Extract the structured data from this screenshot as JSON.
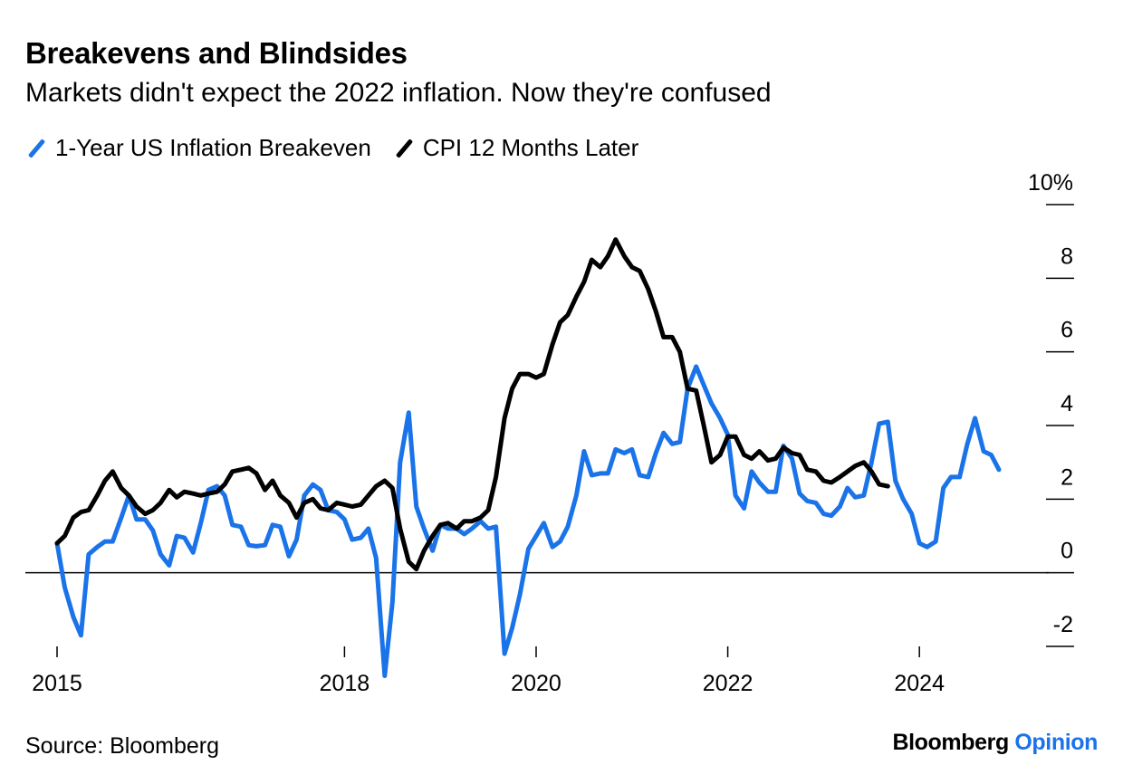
{
  "header": {
    "title": "Breakevens and Blindsides",
    "subtitle": "Markets didn't expect the 2022 inflation. Now they're confused"
  },
  "legend": [
    {
      "label": "1-Year US Inflation Breakeven",
      "color": "#1a73e8"
    },
    {
      "label": "CPI 12 Months Later",
      "color": "#000000"
    }
  ],
  "footer": {
    "source": "Source: Bloomberg",
    "brand_main": "Bloomberg",
    "brand_accent": "Opinion"
  },
  "chart_data": {
    "type": "line",
    "x_unit": "year",
    "xlim": [
      2014.95,
      2025.5
    ],
    "ylim": [
      -2,
      10
    ],
    "x_ticks": [
      {
        "value": 2015,
        "label": "2015"
      },
      {
        "value": 2018,
        "label": "2018"
      },
      {
        "value": 2020,
        "label": "2020"
      },
      {
        "value": 2022,
        "label": "2022"
      },
      {
        "value": 2024,
        "label": "2024"
      }
    ],
    "y_ticks": [
      {
        "value": 10,
        "label": "10%"
      },
      {
        "value": 8,
        "label": "8"
      },
      {
        "value": 6,
        "label": "6"
      },
      {
        "value": 4,
        "label": "4"
      },
      {
        "value": 2,
        "label": "2"
      },
      {
        "value": 0,
        "label": "0"
      },
      {
        "value": -2,
        "label": "-2"
      }
    ],
    "zero_line": true,
    "grid": false,
    "series": [
      {
        "name": "1-Year US Inflation Breakeven",
        "color": "#1a73e8",
        "points": [
          [
            2015.0,
            0.8
          ],
          [
            2015.08,
            -0.4
          ],
          [
            2015.17,
            -1.2
          ],
          [
            2015.25,
            -1.7
          ],
          [
            2015.33,
            0.5
          ],
          [
            2015.42,
            0.7
          ],
          [
            2015.5,
            0.85
          ],
          [
            2015.58,
            0.85
          ],
          [
            2015.67,
            1.5
          ],
          [
            2015.75,
            2.1
          ],
          [
            2015.83,
            1.45
          ],
          [
            2015.92,
            1.45
          ],
          [
            2016.0,
            1.15
          ],
          [
            2016.08,
            0.5
          ],
          [
            2016.17,
            0.2
          ],
          [
            2016.25,
            1.0
          ],
          [
            2016.33,
            0.95
          ],
          [
            2016.42,
            0.55
          ],
          [
            2016.5,
            1.35
          ],
          [
            2016.58,
            2.25
          ],
          [
            2016.67,
            2.35
          ],
          [
            2016.75,
            2.1
          ],
          [
            2016.83,
            1.3
          ],
          [
            2016.92,
            1.25
          ],
          [
            2017.0,
            0.75
          ],
          [
            2017.08,
            0.72
          ],
          [
            2017.17,
            0.75
          ],
          [
            2017.25,
            1.3
          ],
          [
            2017.33,
            1.25
          ],
          [
            2017.42,
            0.45
          ],
          [
            2017.5,
            0.9
          ],
          [
            2017.58,
            2.1
          ],
          [
            2017.67,
            2.4
          ],
          [
            2017.75,
            2.25
          ],
          [
            2017.83,
            1.7
          ],
          [
            2017.92,
            1.65
          ],
          [
            2018.0,
            1.45
          ],
          [
            2018.08,
            0.9
          ],
          [
            2018.17,
            0.95
          ],
          [
            2018.25,
            1.2
          ],
          [
            2018.33,
            0.4
          ],
          [
            2018.42,
            -2.8
          ],
          [
            2018.5,
            -0.8
          ],
          [
            2018.58,
            3.0
          ],
          [
            2018.67,
            4.35
          ],
          [
            2018.75,
            1.8
          ],
          [
            2018.83,
            1.2
          ],
          [
            2018.92,
            0.6
          ],
          [
            2019.0,
            1.3
          ],
          [
            2019.08,
            1.2
          ],
          [
            2019.17,
            1.2
          ],
          [
            2019.25,
            1.05
          ],
          [
            2019.33,
            1.2
          ],
          [
            2019.42,
            1.4
          ],
          [
            2019.5,
            1.2
          ],
          [
            2019.58,
            1.25
          ],
          [
            2019.67,
            -2.2
          ],
          [
            2019.75,
            -1.5
          ],
          [
            2019.83,
            -0.6
          ],
          [
            2019.92,
            0.65
          ],
          [
            2020.0,
            1.0
          ],
          [
            2020.08,
            1.35
          ],
          [
            2020.17,
            0.7
          ],
          [
            2020.25,
            0.85
          ],
          [
            2020.33,
            1.25
          ],
          [
            2020.42,
            2.1
          ],
          [
            2020.5,
            3.3
          ],
          [
            2020.58,
            2.65
          ],
          [
            2020.67,
            2.7
          ],
          [
            2020.75,
            2.7
          ],
          [
            2020.83,
            3.35
          ],
          [
            2020.92,
            3.25
          ],
          [
            2021.0,
            3.35
          ],
          [
            2021.08,
            2.65
          ],
          [
            2021.17,
            2.6
          ],
          [
            2021.25,
            3.25
          ],
          [
            2021.33,
            3.8
          ],
          [
            2021.42,
            3.5
          ],
          [
            2021.5,
            3.55
          ],
          [
            2021.58,
            5.0
          ],
          [
            2021.67,
            5.6
          ],
          [
            2021.75,
            5.1
          ],
          [
            2021.83,
            4.6
          ],
          [
            2021.92,
            4.2
          ],
          [
            2022.0,
            3.75
          ],
          [
            2022.08,
            2.1
          ],
          [
            2022.17,
            1.75
          ],
          [
            2022.25,
            2.75
          ],
          [
            2022.33,
            2.45
          ],
          [
            2022.42,
            2.2
          ],
          [
            2022.5,
            2.2
          ],
          [
            2022.58,
            3.45
          ],
          [
            2022.67,
            3.1
          ],
          [
            2022.75,
            2.15
          ],
          [
            2022.83,
            1.95
          ],
          [
            2022.92,
            1.9
          ],
          [
            2023.0,
            1.6
          ],
          [
            2023.08,
            1.55
          ],
          [
            2023.17,
            1.8
          ],
          [
            2023.25,
            2.3
          ],
          [
            2023.33,
            2.05
          ],
          [
            2023.42,
            2.1
          ],
          [
            2023.5,
            3.0
          ],
          [
            2023.58,
            4.05
          ],
          [
            2023.67,
            4.1
          ],
          [
            2023.75,
            2.5
          ],
          [
            2023.83,
            2.0
          ],
          [
            2023.92,
            1.6
          ],
          [
            2024.0,
            0.8
          ],
          [
            2024.08,
            0.7
          ],
          [
            2024.17,
            0.85
          ],
          [
            2024.25,
            2.3
          ],
          [
            2024.33,
            2.6
          ],
          [
            2024.42,
            2.6
          ],
          [
            2024.5,
            3.5
          ],
          [
            2024.58,
            4.2
          ],
          [
            2024.67,
            3.3
          ],
          [
            2024.75,
            3.2
          ],
          [
            2024.83,
            2.8
          ]
        ]
      },
      {
        "name": "CPI 12 Months Later",
        "color": "#000000",
        "points": [
          [
            2015.0,
            0.8
          ],
          [
            2015.08,
            1.0
          ],
          [
            2015.17,
            1.5
          ],
          [
            2015.25,
            1.65
          ],
          [
            2015.33,
            1.7
          ],
          [
            2015.42,
            2.1
          ],
          [
            2015.5,
            2.5
          ],
          [
            2015.58,
            2.75
          ],
          [
            2015.67,
            2.3
          ],
          [
            2015.75,
            2.1
          ],
          [
            2015.83,
            1.8
          ],
          [
            2015.92,
            1.6
          ],
          [
            2016.0,
            1.7
          ],
          [
            2016.08,
            1.9
          ],
          [
            2016.17,
            2.25
          ],
          [
            2016.25,
            2.05
          ],
          [
            2016.33,
            2.2
          ],
          [
            2016.42,
            2.15
          ],
          [
            2016.5,
            2.1
          ],
          [
            2016.58,
            2.15
          ],
          [
            2016.67,
            2.2
          ],
          [
            2016.75,
            2.4
          ],
          [
            2016.83,
            2.75
          ],
          [
            2016.92,
            2.8
          ],
          [
            2017.0,
            2.85
          ],
          [
            2017.08,
            2.7
          ],
          [
            2017.17,
            2.25
          ],
          [
            2017.25,
            2.5
          ],
          [
            2017.33,
            2.1
          ],
          [
            2017.42,
            1.9
          ],
          [
            2017.5,
            1.5
          ],
          [
            2017.58,
            1.9
          ],
          [
            2017.67,
            2.0
          ],
          [
            2017.75,
            1.75
          ],
          [
            2017.83,
            1.7
          ],
          [
            2017.92,
            1.9
          ],
          [
            2018.0,
            1.85
          ],
          [
            2018.08,
            1.8
          ],
          [
            2018.17,
            1.85
          ],
          [
            2018.25,
            2.1
          ],
          [
            2018.33,
            2.35
          ],
          [
            2018.42,
            2.5
          ],
          [
            2018.5,
            2.3
          ],
          [
            2018.58,
            1.2
          ],
          [
            2018.67,
            0.3
          ],
          [
            2018.75,
            0.1
          ],
          [
            2018.83,
            0.6
          ],
          [
            2018.92,
            1.0
          ],
          [
            2019.0,
            1.3
          ],
          [
            2019.08,
            1.35
          ],
          [
            2019.17,
            1.2
          ],
          [
            2019.25,
            1.4
          ],
          [
            2019.33,
            1.4
          ],
          [
            2019.42,
            1.5
          ],
          [
            2019.5,
            1.7
          ],
          [
            2019.58,
            2.6
          ],
          [
            2019.67,
            4.2
          ],
          [
            2019.75,
            5.0
          ],
          [
            2019.83,
            5.4
          ],
          [
            2019.92,
            5.4
          ],
          [
            2020.0,
            5.3
          ],
          [
            2020.08,
            5.4
          ],
          [
            2020.17,
            6.2
          ],
          [
            2020.25,
            6.8
          ],
          [
            2020.33,
            7.0
          ],
          [
            2020.42,
            7.5
          ],
          [
            2020.5,
            7.9
          ],
          [
            2020.58,
            8.5
          ],
          [
            2020.67,
            8.3
          ],
          [
            2020.75,
            8.6
          ],
          [
            2020.83,
            9.05
          ],
          [
            2020.92,
            8.6
          ],
          [
            2021.0,
            8.3
          ],
          [
            2021.08,
            8.2
          ],
          [
            2021.17,
            7.7
          ],
          [
            2021.25,
            7.1
          ],
          [
            2021.33,
            6.4
          ],
          [
            2021.42,
            6.4
          ],
          [
            2021.5,
            6.0
          ],
          [
            2021.58,
            5.0
          ],
          [
            2021.67,
            4.95
          ],
          [
            2021.75,
            4.0
          ],
          [
            2021.83,
            3.0
          ],
          [
            2021.92,
            3.2
          ],
          [
            2022.0,
            3.7
          ],
          [
            2022.08,
            3.7
          ],
          [
            2022.17,
            3.2
          ],
          [
            2022.25,
            3.1
          ],
          [
            2022.33,
            3.3
          ],
          [
            2022.42,
            3.05
          ],
          [
            2022.5,
            3.1
          ],
          [
            2022.58,
            3.4
          ],
          [
            2022.67,
            3.25
          ],
          [
            2022.75,
            3.2
          ],
          [
            2022.83,
            2.8
          ],
          [
            2022.92,
            2.75
          ],
          [
            2023.0,
            2.5
          ],
          [
            2023.08,
            2.45
          ],
          [
            2023.17,
            2.6
          ],
          [
            2023.25,
            2.75
          ],
          [
            2023.33,
            2.9
          ],
          [
            2023.42,
            3.0
          ],
          [
            2023.5,
            2.75
          ],
          [
            2023.58,
            2.4
          ],
          [
            2023.67,
            2.35
          ]
        ]
      }
    ]
  }
}
